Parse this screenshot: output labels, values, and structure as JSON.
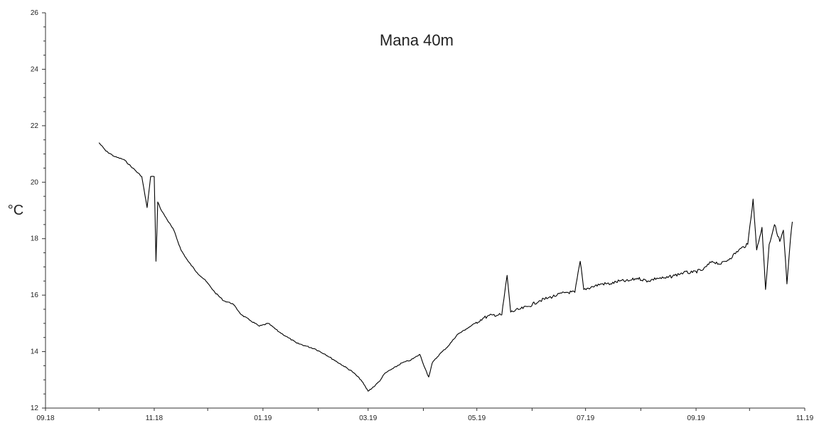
{
  "chart_data": {
    "type": "line",
    "title": "Mana 40m",
    "xlabel": "",
    "ylabel": "°C",
    "xlim": [
      "2018-09-01",
      "2019-11-01"
    ],
    "ylim": [
      12,
      26
    ],
    "grid": false,
    "legend": "none",
    "line_color": "#000000",
    "x_ticks": [
      "09.18",
      "11.18",
      "01.19",
      "03.19",
      "05.19",
      "07.19",
      "09.19",
      "11.19"
    ],
    "y_ticks": [
      "12",
      "14",
      "16",
      "18",
      "20",
      "22",
      "24",
      "26"
    ],
    "series": [
      {
        "x": [
          "2018-10-01",
          "2018-10-05",
          "2018-10-10",
          "2018-10-15",
          "2018-10-20",
          "2018-10-25",
          "2018-10-28",
          "2018-10-30",
          "2018-11-01",
          "2018-11-02",
          "2018-11-03",
          "2018-11-05",
          "2018-11-08",
          "2018-11-12",
          "2018-11-16",
          "2018-11-20",
          "2018-11-25",
          "2018-11-30",
          "2018-12-05",
          "2018-12-10",
          "2018-12-15",
          "2018-12-20",
          "2018-12-25",
          "2018-12-30",
          "2019-01-04",
          "2019-01-10",
          "2019-01-15",
          "2019-01-20",
          "2019-01-25",
          "2019-01-30",
          "2019-02-05",
          "2019-02-10",
          "2019-02-15",
          "2019-02-20",
          "2019-02-25",
          "2019-03-01",
          "2019-03-05",
          "2019-03-08",
          "2019-03-10",
          "2019-03-12",
          "2019-03-15",
          "2019-03-20",
          "2019-03-25",
          "2019-03-30",
          "2019-04-02",
          "2019-04-04",
          "2019-04-06",
          "2019-04-10",
          "2019-04-15",
          "2019-04-20",
          "2019-04-25",
          "2019-04-30",
          "2019-05-05",
          "2019-05-10",
          "2019-05-15",
          "2019-05-18",
          "2019-05-20",
          "2019-05-25",
          "2019-05-30",
          "2019-06-05",
          "2019-06-10",
          "2019-06-15",
          "2019-06-20",
          "2019-06-25",
          "2019-06-28",
          "2019-06-30",
          "2019-07-05",
          "2019-07-10",
          "2019-07-15",
          "2019-07-20",
          "2019-07-25",
          "2019-07-30",
          "2019-08-05",
          "2019-08-10",
          "2019-08-15",
          "2019-08-20",
          "2019-08-25",
          "2019-08-30",
          "2019-09-05",
          "2019-09-10",
          "2019-09-15",
          "2019-09-20",
          "2019-09-25",
          "2019-09-30",
          "2019-10-03",
          "2019-10-05",
          "2019-10-08",
          "2019-10-10",
          "2019-10-12",
          "2019-10-15",
          "2019-10-18",
          "2019-10-20",
          "2019-10-22",
          "2019-10-24",
          "2019-10-25"
        ],
        "values": [
          21.4,
          21.1,
          20.9,
          20.8,
          20.5,
          20.2,
          19.1,
          20.2,
          20.2,
          17.2,
          19.3,
          19.0,
          18.7,
          18.3,
          17.6,
          17.2,
          16.8,
          16.5,
          16.1,
          15.8,
          15.7,
          15.3,
          15.1,
          14.9,
          15.0,
          14.7,
          14.5,
          14.3,
          14.2,
          14.1,
          13.9,
          13.7,
          13.5,
          13.3,
          13.0,
          12.6,
          12.8,
          13.0,
          13.2,
          13.3,
          13.4,
          13.6,
          13.7,
          13.9,
          13.4,
          13.1,
          13.6,
          13.9,
          14.2,
          14.6,
          14.8,
          15.0,
          15.2,
          15.3,
          15.3,
          16.7,
          15.4,
          15.5,
          15.6,
          15.8,
          15.9,
          16.0,
          16.1,
          16.1,
          17.2,
          16.2,
          16.3,
          16.4,
          16.4,
          16.5,
          16.5,
          16.6,
          16.5,
          16.6,
          16.6,
          16.7,
          16.8,
          16.8,
          16.9,
          17.2,
          17.1,
          17.3,
          17.6,
          17.8,
          19.4,
          17.6,
          18.4,
          16.2,
          17.8,
          18.5,
          17.9,
          18.3,
          16.4,
          18.0,
          18.6
        ]
      }
    ]
  }
}
